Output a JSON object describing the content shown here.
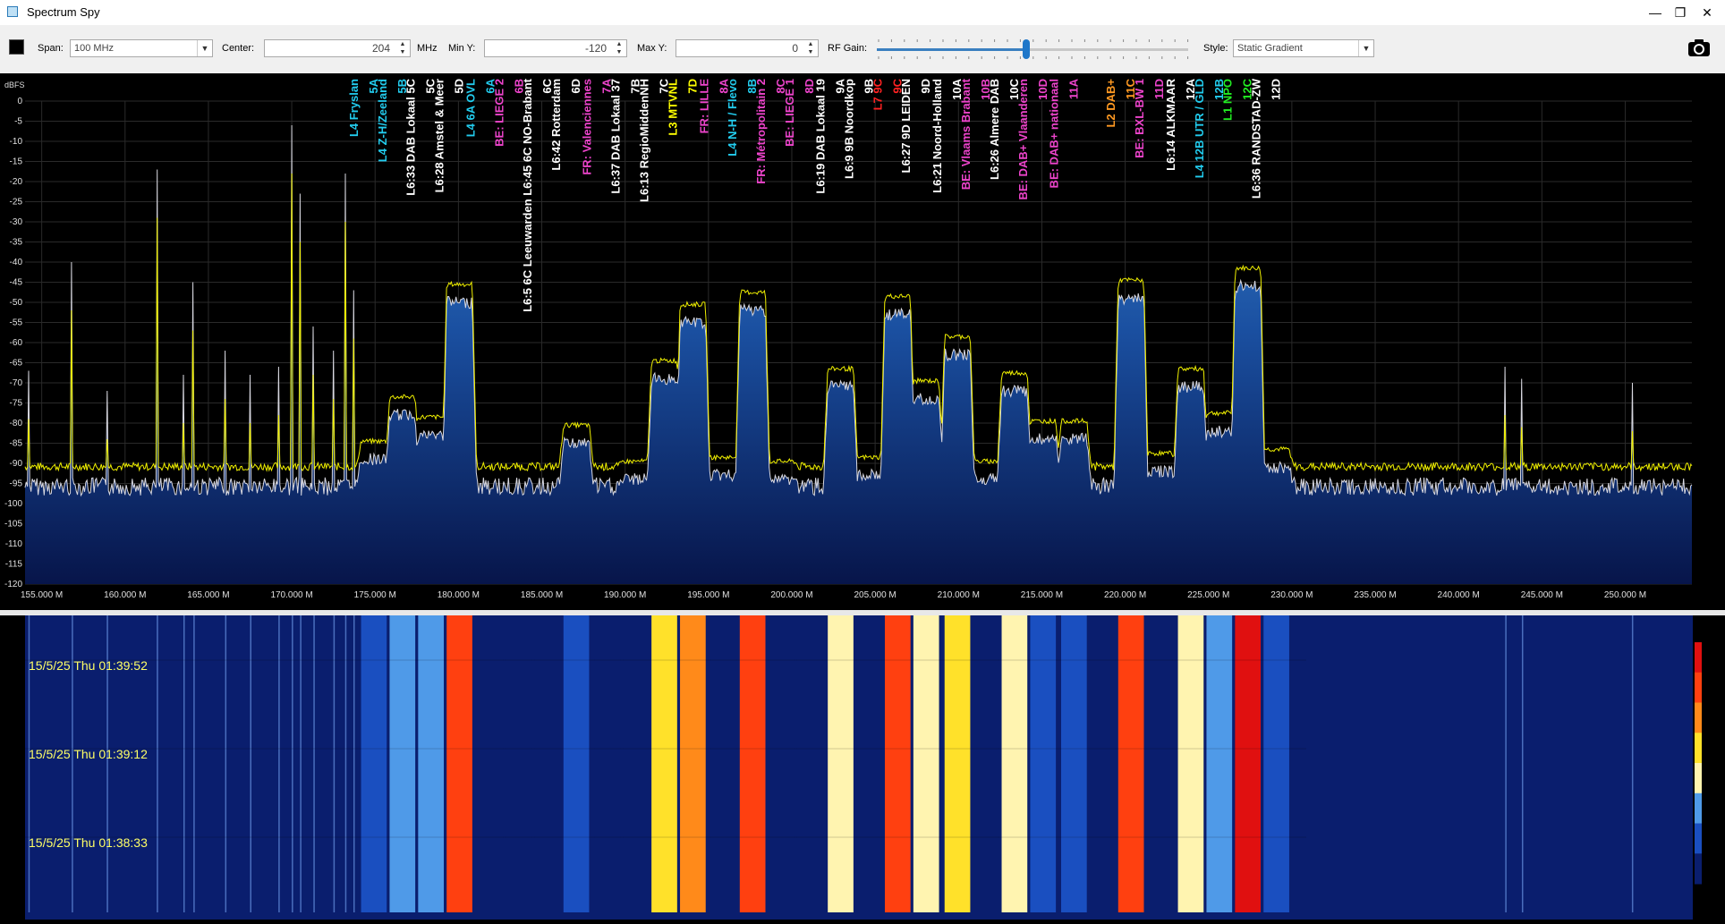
{
  "window": {
    "title": "Spectrum Spy",
    "minimize": "—",
    "maximize": "❐",
    "close": "✕"
  },
  "toolbar": {
    "span_label": "Span:",
    "span_value": "100 MHz",
    "center_label": "Center:",
    "center_value": "204",
    "center_unit": "MHz",
    "miny_label": "Min Y:",
    "miny_value": "-120",
    "maxy_label": "Max Y:",
    "maxy_value": "0",
    "rfgain_label": "RF Gain:",
    "rfgain_level": 0.48,
    "style_label": "Style:",
    "style_value": "Static Gradient",
    "icons": {
      "color": "color-swatch-icon",
      "camera": "camera-icon"
    }
  },
  "chart_data": {
    "type": "line",
    "ylabel": "dBFS",
    "ylim": [
      -120,
      0
    ],
    "xlim": [
      154.0,
      254.0
    ],
    "yticks": [
      "0",
      "-5",
      "-10",
      "-15",
      "-20",
      "-25",
      "-30",
      "-35",
      "-40",
      "-45",
      "-50",
      "-55",
      "-60",
      "-65",
      "-70",
      "-75",
      "-80",
      "-85",
      "-90",
      "-95",
      "-100",
      "-105",
      "-110",
      "-115",
      "-120"
    ],
    "xticks": [
      "155.000 M",
      "160.000 M",
      "165.000 M",
      "170.000 M",
      "175.000 M",
      "180.000 M",
      "185.000 M",
      "190.000 M",
      "195.000 M",
      "200.000 M",
      "205.000 M",
      "210.000 M",
      "215.000 M",
      "220.000 M",
      "225.000 M",
      "230.000 M",
      "235.000 M",
      "240.000 M",
      "245.000 M",
      "250.000 M"
    ],
    "noise_floor": -92,
    "colors": {
      "peak": "#f0f000",
      "average": "#d8d8e0",
      "fill_top": "#2a6fb8",
      "fill_bottom": "#0a1f5a",
      "grid": "#2a2a2a"
    },
    "blocks": [
      {
        "f": 174.928,
        "level": -86
      },
      {
        "f": 176.64,
        "level": -75
      },
      {
        "f": 178.352,
        "level": -80
      },
      {
        "f": 180.064,
        "level": -47
      },
      {
        "f": 181.936,
        "level": -92
      },
      {
        "f": 183.648,
        "level": -93
      },
      {
        "f": 185.36,
        "level": -93
      },
      {
        "f": 187.072,
        "level": -82
      },
      {
        "f": 188.928,
        "level": -93
      },
      {
        "f": 190.64,
        "level": -91
      },
      {
        "f": 192.352,
        "level": -66
      },
      {
        "f": 194.064,
        "level": -52
      },
      {
        "f": 195.936,
        "level": -90
      },
      {
        "f": 197.648,
        "level": -49
      },
      {
        "f": 199.36,
        "level": -91
      },
      {
        "f": 201.072,
        "level": -92
      },
      {
        "f": 202.928,
        "level": -68
      },
      {
        "f": 204.64,
        "level": -90
      },
      {
        "f": 206.352,
        "level": -50
      },
      {
        "f": 208.064,
        "level": -71
      },
      {
        "f": 209.936,
        "level": -60
      },
      {
        "f": 211.648,
        "level": -91
      },
      {
        "f": 213.36,
        "level": -69
      },
      {
        "f": 215.072,
        "level": -81
      },
      {
        "f": 216.928,
        "level": -81
      },
      {
        "f": 218.64,
        "level": -92
      },
      {
        "f": 220.352,
        "level": -46
      },
      {
        "f": 222.064,
        "level": -89
      },
      {
        "f": 223.936,
        "level": -68
      },
      {
        "f": 225.648,
        "level": -79
      },
      {
        "f": 227.36,
        "level": -43
      },
      {
        "f": 229.072,
        "level": -88
      }
    ],
    "spurs": [
      {
        "f": 154.2,
        "level": -79
      },
      {
        "f": 156.8,
        "level": -52
      },
      {
        "f": 158.9,
        "level": -84
      },
      {
        "f": 161.9,
        "level": -29
      },
      {
        "f": 163.5,
        "level": -80
      },
      {
        "f": 164.1,
        "level": -57
      },
      {
        "f": 166.0,
        "level": -74
      },
      {
        "f": 167.5,
        "level": -80
      },
      {
        "f": 169.2,
        "level": -78
      },
      {
        "f": 170.0,
        "level": -18
      },
      {
        "f": 170.5,
        "level": -35
      },
      {
        "f": 171.3,
        "level": -68
      },
      {
        "f": 172.5,
        "level": -74
      },
      {
        "f": 173.2,
        "level": -30
      },
      {
        "f": 173.7,
        "level": -59
      },
      {
        "f": 242.8,
        "level": -78
      },
      {
        "f": 243.8,
        "level": -81
      },
      {
        "f": 250.4,
        "level": -82
      }
    ],
    "labels": [
      {
        "ch": "5A",
        "text": "L4 Fryslan",
        "f": 174.928,
        "color": "#22ccee"
      },
      {
        "ch": "5B",
        "text": "L4 Z-H/Zeeland",
        "f": 176.64,
        "color": "#22ccee"
      },
      {
        "ch": "5C",
        "text": "L6:33 DAB Lokaal 5C",
        "f": 178.352,
        "color": "#ffffff"
      },
      {
        "ch": "5D",
        "text": "L6:28 Amstel & Meer",
        "f": 180.064,
        "color": "#ffffff"
      },
      {
        "ch": "6A",
        "text": "L4 6A OVL",
        "f": 181.936,
        "color": "#22ccee"
      },
      {
        "ch": "6B",
        "text": "BE: LIEGE 2",
        "f": 183.648,
        "color": "#ee44cc"
      },
      {
        "ch": "6C",
        "text": "L6:5 6C Leeuwarden L6:45 6C NO-Brabant",
        "f": 185.36,
        "color": "#ffffff"
      },
      {
        "ch": "6D",
        "text": "L6:42 Rotterdam",
        "f": 187.072,
        "color": "#ffffff"
      },
      {
        "ch": "7A",
        "text": "FR: Valenciennes",
        "f": 188.928,
        "color": "#ee44cc"
      },
      {
        "ch": "7B",
        "text": "L6:37 DAB Lokaal 37",
        "f": 190.64,
        "color": "#ffffff"
      },
      {
        "ch": "7C",
        "text": "L6:13 RegioMiddenNH",
        "f": 192.352,
        "color": "#ffffff"
      },
      {
        "ch": "7D",
        "text": "L3 MTVNL",
        "f": 194.064,
        "color": "#ffff00"
      },
      {
        "ch": "8A",
        "text": "FR: LILLE",
        "f": 195.936,
        "color": "#ee44cc"
      },
      {
        "ch": "8B",
        "text": "L4 N-H / Flevo",
        "f": 197.648,
        "color": "#22ccee"
      },
      {
        "ch": "8C",
        "text": "FR: Métropolitain 2",
        "f": 199.36,
        "color": "#ee44cc"
      },
      {
        "ch": "8D",
        "text": "BE: LIEGE 1",
        "f": 201.072,
        "color": "#ee44cc"
      },
      {
        "ch": "9A",
        "text": "L6:19 DAB Lokaal 19",
        "f": 202.928,
        "color": "#ffffff"
      },
      {
        "ch": "9B",
        "text": "L6:9 9B Noordkop",
        "f": 204.64,
        "color": "#ffffff"
      },
      {
        "ch": "9C",
        "text": "L7 9C",
        "f": 206.352,
        "color": "#ff2222"
      },
      {
        "ch": "9D",
        "text": "L6:27 9D LEIDEN",
        "f": 208.064,
        "color": "#ffffff"
      },
      {
        "ch": "10A",
        "text": "L6:21 Noord-Holland",
        "f": 209.936,
        "color": "#ffffff"
      },
      {
        "ch": "10B",
        "text": "BE: Vlaams Brabant",
        "f": 211.648,
        "color": "#ee44cc"
      },
      {
        "ch": "10C",
        "text": "L6:26 Almere DAB",
        "f": 213.36,
        "color": "#ffffff"
      },
      {
        "ch": "10D",
        "text": "BE: DAB+ Vlaanderen",
        "f": 215.072,
        "color": "#ee44cc"
      },
      {
        "ch": "11A",
        "text": "BE: DAB+ nationaal",
        "f": 216.928,
        "color": "#ee44cc"
      },
      {
        "ch": "11C",
        "text": "L2 DAB+",
        "f": 220.352,
        "color": "#ff9922"
      },
      {
        "ch": "11D",
        "text": "BE: BXL-BW 1",
        "f": 222.064,
        "color": "#ee44cc"
      },
      {
        "ch": "12A",
        "text": "L6:14 ALKMAAR",
        "f": 223.936,
        "color": "#ffffff"
      },
      {
        "ch": "12B",
        "text": "L4 12B UTR / GLD",
        "f": 225.648,
        "color": "#22ccee"
      },
      {
        "ch": "12C",
        "text": "L1 NPO",
        "f": 227.36,
        "color": "#22ee22"
      },
      {
        "ch": "12D",
        "text": "L6:36 RANDSTAD-ZW",
        "f": 229.072,
        "color": "#ffffff"
      }
    ]
  },
  "waterfall": {
    "timestamps": [
      "15/5/25 Thu 01:39:52",
      "15/5/25 Thu 01:39:12",
      "15/5/25 Thu 01:38:33"
    ],
    "colormap": [
      "#0a1e6e",
      "#1a4fc0",
      "#4f9ae8",
      "#fff4b0",
      "#ffe12a",
      "#ff8a1a",
      "#ff4010",
      "#e01010"
    ]
  }
}
